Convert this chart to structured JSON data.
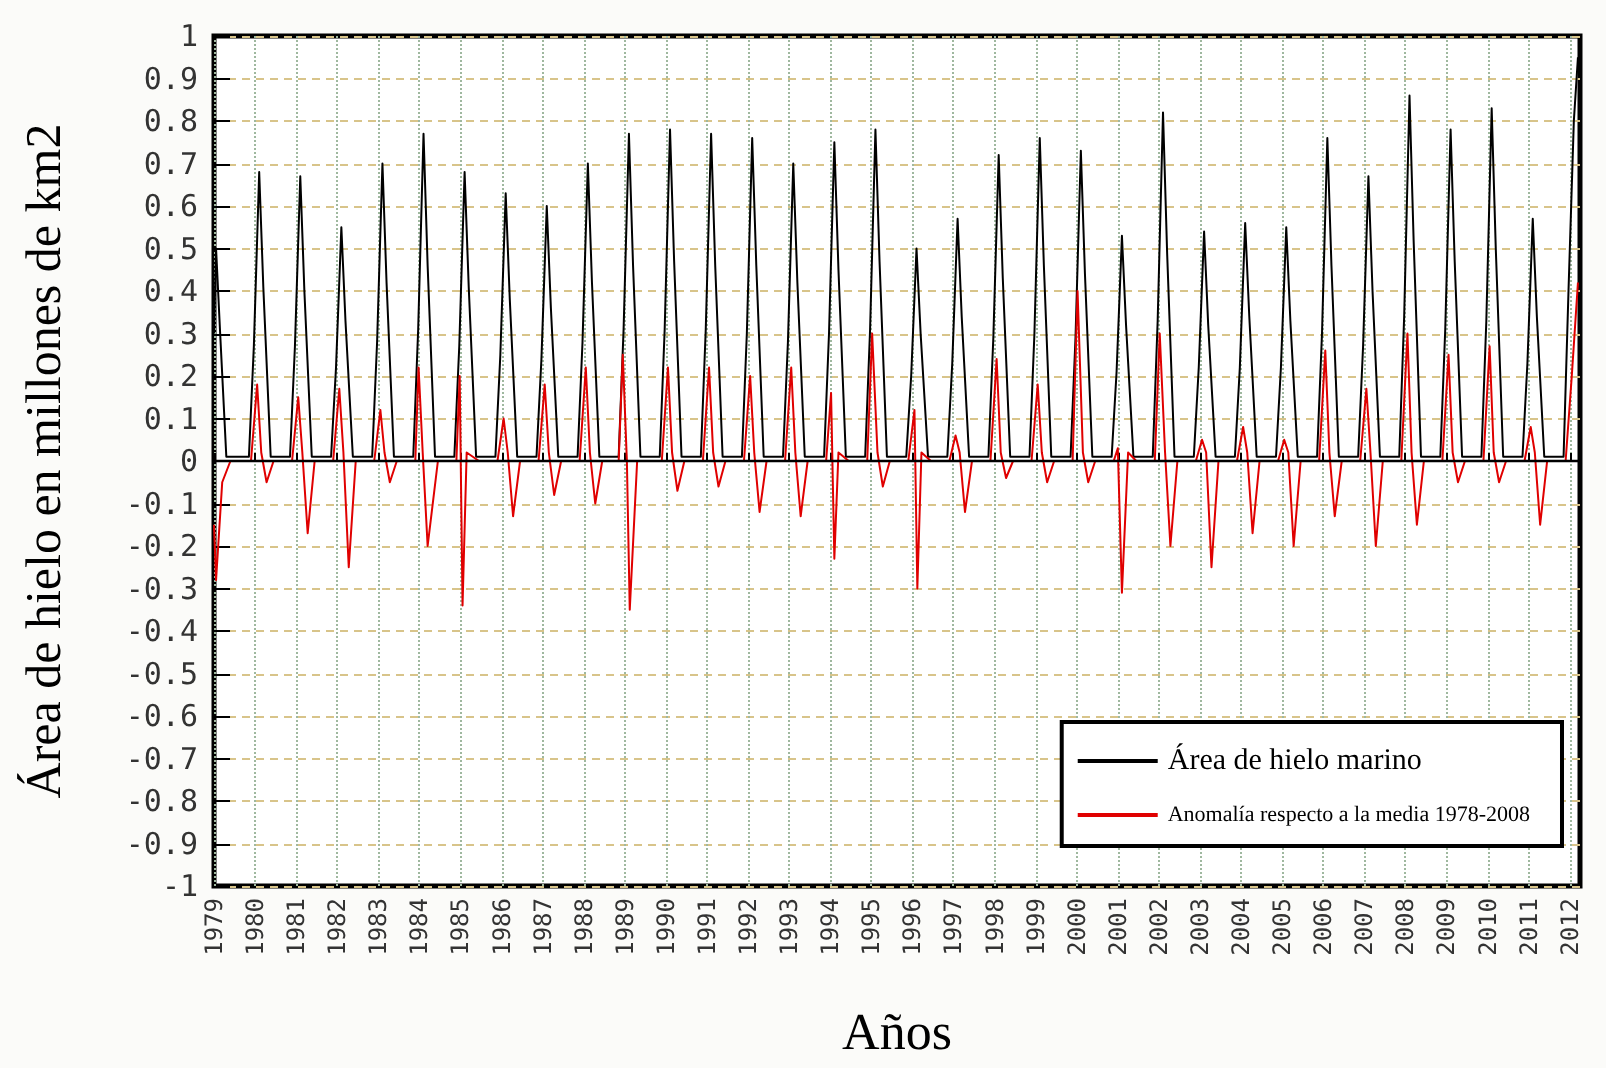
{
  "chart_data": {
    "type": "line",
    "xlabel": "Años",
    "ylabel": "Área de hielo en millones de km2",
    "xlim": [
      1979,
      2012.25
    ],
    "xticks": [
      1979,
      1980,
      1981,
      1982,
      1983,
      1984,
      1985,
      1986,
      1987,
      1988,
      1989,
      1990,
      1991,
      1992,
      1993,
      1994,
      1995,
      1996,
      1997,
      1998,
      1999,
      2000,
      2001,
      2002,
      2003,
      2004,
      2005,
      2006,
      2007,
      2008,
      2009,
      2010,
      2011,
      2012
    ],
    "ylim": [
      -1,
      1
    ],
    "yticks": [
      -1,
      -0.9,
      -0.8,
      -0.7,
      -0.6,
      -0.5,
      -0.4,
      -0.3,
      -0.2,
      -0.1,
      0,
      0.1,
      0.2,
      0.3,
      0.4,
      0.5,
      0.6,
      0.7,
      0.8,
      0.9,
      1
    ],
    "grid": true,
    "legend": "bottom right",
    "marker": "none",
    "line_style": "solid",
    "ref_lines": [
      {
        "axis": "y",
        "value": 0,
        "color": "#000000"
      }
    ],
    "series": [
      {
        "name": "Área de hielo marino",
        "color": "#000000",
        "x": [
          1979,
          1979.05,
          1979.15,
          1979.3,
          1979.85,
          1979.97,
          1980.1,
          1980.2,
          1980.38,
          1980.85,
          1980.97,
          1981.1,
          1981.2,
          1981.38,
          1981.85,
          1981.97,
          1982.1,
          1982.2,
          1982.38,
          1982.85,
          1982.97,
          1983.1,
          1983.2,
          1983.38,
          1983.85,
          1983.97,
          1984.1,
          1984.2,
          1984.38,
          1984.85,
          1984.97,
          1985.1,
          1985.2,
          1985.38,
          1985.85,
          1985.97,
          1986.1,
          1986.2,
          1986.38,
          1986.85,
          1986.97,
          1987.1,
          1987.2,
          1987.38,
          1987.85,
          1987.97,
          1988.1,
          1988.2,
          1988.38,
          1988.85,
          1988.97,
          1989.1,
          1989.2,
          1989.38,
          1989.85,
          1989.97,
          1990.1,
          1990.2,
          1990.38,
          1990.85,
          1990.97,
          1991.1,
          1991.2,
          1991.38,
          1991.85,
          1991.97,
          1992.1,
          1992.2,
          1992.38,
          1992.85,
          1992.97,
          1993.1,
          1993.2,
          1993.38,
          1993.85,
          1993.97,
          1994.1,
          1994.2,
          1994.38,
          1994.85,
          1994.97,
          1995.1,
          1995.2,
          1995.38,
          1995.85,
          1995.97,
          1996.1,
          1996.2,
          1996.38,
          1996.85,
          1996.97,
          1997.1,
          1997.2,
          1997.38,
          1997.85,
          1997.97,
          1998.1,
          1998.2,
          1998.38,
          1998.85,
          1998.97,
          1999.1,
          1999.2,
          1999.38,
          1999.85,
          1999.97,
          2000.1,
          2000.2,
          2000.38,
          2000.85,
          2000.97,
          2001.1,
          2001.2,
          2001.38,
          2001.85,
          2001.97,
          2002.1,
          2002.2,
          2002.38,
          2002.85,
          2002.97,
          2003.1,
          2003.2,
          2003.38,
          2003.85,
          2003.97,
          2004.1,
          2004.2,
          2004.38,
          2004.85,
          2004.97,
          2005.1,
          2005.2,
          2005.38,
          2005.85,
          2005.97,
          2006.1,
          2006.2,
          2006.38,
          2006.85,
          2006.97,
          2007.1,
          2007.2,
          2007.38,
          2007.85,
          2007.97,
          2008.1,
          2008.2,
          2008.38,
          2008.85,
          2008.97,
          2009.1,
          2009.2,
          2009.38,
          2009.85,
          2009.97,
          2010.1,
          2010.2,
          2010.38,
          2010.85,
          2010.97,
          2011.1,
          2011.2,
          2011.38,
          2011.85,
          2011.97,
          2012.1,
          2012.2
        ],
        "values": [
          0.3,
          0.5,
          0.3,
          0.01,
          0.01,
          0.27,
          0.68,
          0.41,
          0.01,
          0.01,
          0.27,
          0.67,
          0.4,
          0.01,
          0.01,
          0.22,
          0.55,
          0.33,
          0.01,
          0.01,
          0.28,
          0.7,
          0.42,
          0.01,
          0.01,
          0.31,
          0.77,
          0.46,
          0.01,
          0.01,
          0.27,
          0.68,
          0.41,
          0.01,
          0.01,
          0.25,
          0.63,
          0.38,
          0.01,
          0.01,
          0.24,
          0.6,
          0.36,
          0.01,
          0.01,
          0.28,
          0.7,
          0.42,
          0.01,
          0.01,
          0.31,
          0.77,
          0.46,
          0.01,
          0.01,
          0.31,
          0.78,
          0.47,
          0.01,
          0.01,
          0.31,
          0.77,
          0.46,
          0.01,
          0.01,
          0.3,
          0.76,
          0.46,
          0.01,
          0.01,
          0.28,
          0.7,
          0.42,
          0.01,
          0.01,
          0.3,
          0.75,
          0.45,
          0.01,
          0.01,
          0.31,
          0.78,
          0.47,
          0.01,
          0.01,
          0.2,
          0.5,
          0.3,
          0.01,
          0.01,
          0.23,
          0.57,
          0.34,
          0.01,
          0.01,
          0.29,
          0.72,
          0.43,
          0.01,
          0.01,
          0.3,
          0.76,
          0.46,
          0.01,
          0.01,
          0.29,
          0.73,
          0.44,
          0.01,
          0.01,
          0.21,
          0.53,
          0.32,
          0.01,
          0.01,
          0.33,
          0.82,
          0.49,
          0.01,
          0.01,
          0.22,
          0.54,
          0.32,
          0.01,
          0.01,
          0.22,
          0.56,
          0.34,
          0.01,
          0.01,
          0.22,
          0.55,
          0.33,
          0.01,
          0.01,
          0.3,
          0.76,
          0.46,
          0.01,
          0.01,
          0.27,
          0.67,
          0.4,
          0.01,
          0.01,
          0.34,
          0.86,
          0.52,
          0.01,
          0.01,
          0.31,
          0.78,
          0.47,
          0.01,
          0.01,
          0.33,
          0.83,
          0.5,
          0.01,
          0.01,
          0.23,
          0.57,
          0.34,
          0.01,
          0.01,
          0.4,
          0.8,
          0.95
        ]
      },
      {
        "name": "Anomalía respecto a la media 1978-2008",
        "color": "#e00000",
        "x": [
          1979,
          1979.05,
          1979.2,
          1979.4,
          1979.9,
          1980.05,
          1980.15,
          1980.28,
          1980.45,
          1980.9,
          1981.05,
          1981.15,
          1981.28,
          1981.45,
          1981.9,
          1982.05,
          1982.15,
          1982.28,
          1982.45,
          1982.9,
          1983.05,
          1983.15,
          1983.28,
          1983.45,
          1983.9,
          1983.98,
          1984.08,
          1984.2,
          1984.45,
          1984.9,
          1984.98,
          1985.05,
          1985.15,
          1985.45,
          1985.9,
          1986.05,
          1986.15,
          1986.28,
          1986.45,
          1986.9,
          1987.05,
          1987.15,
          1987.28,
          1987.45,
          1987.9,
          1988.05,
          1988.15,
          1988.28,
          1988.45,
          1988.85,
          1988.95,
          1989.05,
          1989.12,
          1989.3,
          1989.9,
          1990.05,
          1990.15,
          1990.28,
          1990.45,
          1990.9,
          1991.05,
          1991.15,
          1991.28,
          1991.45,
          1991.9,
          1992.05,
          1992.15,
          1992.28,
          1992.45,
          1992.9,
          1993.05,
          1993.15,
          1993.28,
          1993.45,
          1993.9,
          1994.02,
          1994.1,
          1994.2,
          1994.45,
          1994.9,
          1995.02,
          1995.15,
          1995.28,
          1995.45,
          1995.9,
          1996.05,
          1996.12,
          1996.22,
          1996.45,
          1996.9,
          1997.05,
          1997.15,
          1997.28,
          1997.45,
          1997.9,
          1998.05,
          1998.15,
          1998.28,
          1998.45,
          1998.9,
          1999.05,
          1999.15,
          1999.28,
          1999.45,
          1999.9,
          2000.02,
          2000.15,
          2000.28,
          2000.45,
          2000.9,
          2001.0,
          2001.1,
          2001.25,
          2001.45,
          2001.9,
          2002.02,
          2002.15,
          2002.28,
          2002.45,
          2002.9,
          2003.05,
          2003.15,
          2003.28,
          2003.45,
          2003.9,
          2004.05,
          2004.15,
          2004.28,
          2004.45,
          2004.9,
          2005.05,
          2005.15,
          2005.28,
          2005.45,
          2005.9,
          2006.05,
          2006.15,
          2006.28,
          2006.45,
          2006.9,
          2007.05,
          2007.15,
          2007.28,
          2007.45,
          2007.9,
          2008.05,
          2008.15,
          2008.28,
          2008.45,
          2008.9,
          2009.05,
          2009.15,
          2009.28,
          2009.45,
          2009.9,
          2010.05,
          2010.15,
          2010.28,
          2010.45,
          2010.9,
          2011.05,
          2011.15,
          2011.28,
          2011.45,
          2011.9,
          2012.05,
          2012.2
        ],
        "values": [
          -0.15,
          -0.28,
          -0.05,
          0,
          0,
          0.18,
          0.02,
          -0.05,
          0,
          0,
          0.15,
          0.02,
          -0.17,
          0,
          0,
          0.17,
          0.02,
          -0.25,
          0,
          0,
          0.12,
          0.02,
          -0.05,
          0,
          0,
          0.22,
          0.02,
          -0.2,
          0,
          0,
          0.2,
          -0.34,
          0.02,
          0,
          0,
          0.1,
          0.02,
          -0.13,
          0,
          0,
          0.18,
          0.02,
          -0.08,
          0,
          0,
          0.22,
          0.02,
          -0.1,
          0,
          0,
          0.25,
          0,
          -0.35,
          0,
          0,
          0.22,
          0.02,
          -0.07,
          0,
          0,
          0.22,
          0.02,
          -0.06,
          0,
          0,
          0.2,
          0.02,
          -0.12,
          0,
          0,
          0.22,
          0.02,
          -0.13,
          0,
          0,
          0.16,
          -0.23,
          0.02,
          0,
          0,
          0.3,
          0.02,
          -0.06,
          0,
          0,
          0.12,
          -0.3,
          0.02,
          0,
          0,
          0.06,
          0.02,
          -0.12,
          0,
          0,
          0.24,
          0.02,
          -0.04,
          0,
          0,
          0.18,
          0.02,
          -0.05,
          0,
          0,
          0.4,
          0.02,
          -0.05,
          0,
          0,
          0.03,
          -0.31,
          0.02,
          0,
          0,
          0.3,
          0.02,
          -0.2,
          0,
          0,
          0.05,
          0.02,
          -0.25,
          0,
          0,
          0.08,
          0.02,
          -0.17,
          0,
          0,
          0.05,
          0.02,
          -0.2,
          0,
          0,
          0.26,
          0.02,
          -0.13,
          0,
          0,
          0.17,
          0.02,
          -0.2,
          0,
          0,
          0.3,
          0.02,
          -0.15,
          0,
          0,
          0.25,
          0.02,
          -0.05,
          0,
          0,
          0.27,
          0.02,
          -0.05,
          0,
          0,
          0.08,
          0.02,
          -0.15,
          0,
          0,
          0.2,
          0.42
        ]
      }
    ]
  }
}
